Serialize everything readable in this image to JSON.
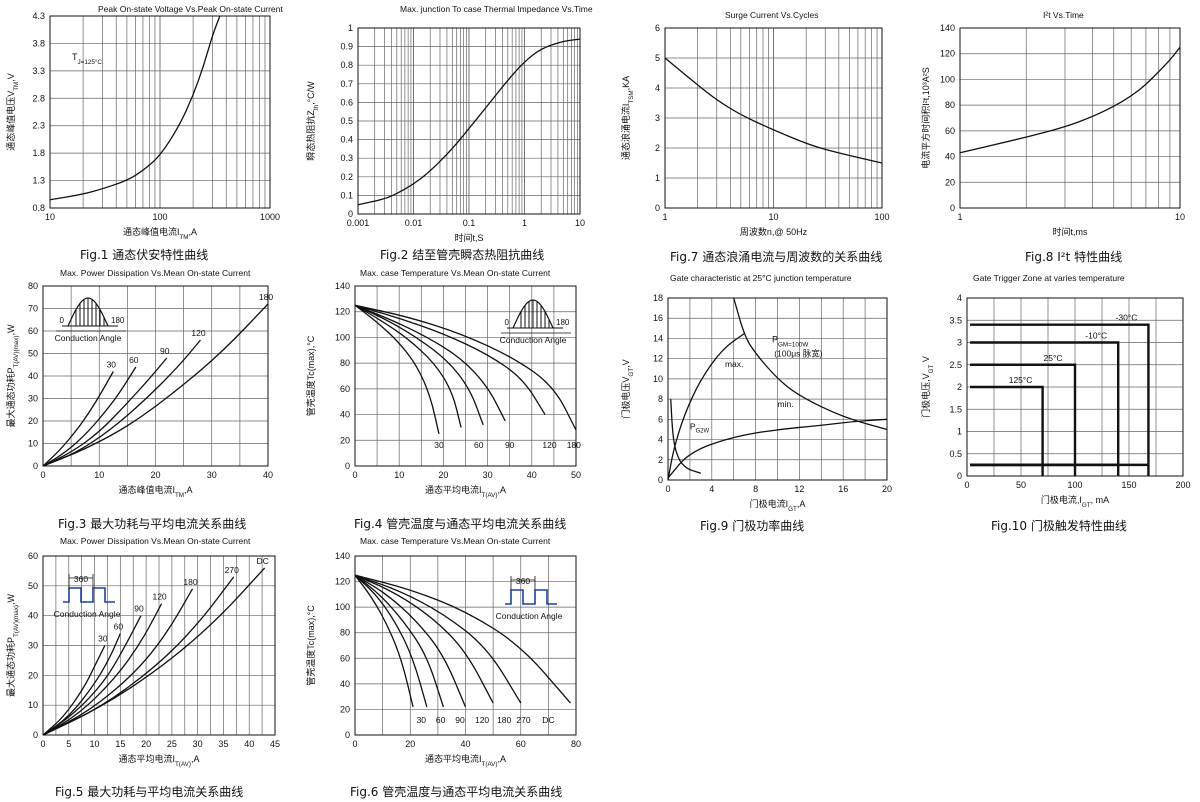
{
  "figure_captions": {
    "fig1": "Fig.1 通态伏安特性曲线",
    "fig2": "Fig.2 结至管壳瞬态热阻抗曲线",
    "fig3": "Fig.3 最大功耗与平均电流关系曲线",
    "fig4": "Fig.4 管壳温度与通态平均电流关系曲线",
    "fig5": "Fig.5 最大功耗与平均电流关系曲线",
    "fig6": "Fig.6 管壳温度与通态平均电流关系曲线",
    "fig7": "Fig.7 通态浪涌电流与周波数的关系曲线",
    "fig8": "Fig.8 I²t 特性曲线",
    "fig9": "Fig.9 门极功率曲线",
    "fig10": "Fig.10 门极触发特性曲线"
  },
  "chart_data": [
    {
      "id": "fig1",
      "type": "line",
      "xscale": "log",
      "title": "Peak On-state Voltage Vs.Peak On-state Current",
      "xlabel": "通态峰值电流I_TM,A",
      "ylabel": "通态峰值电压V_TM,V",
      "xlim": [
        10,
        1000
      ],
      "ylim": [
        0.8,
        4.3
      ],
      "xticks": [
        10,
        100,
        1000
      ],
      "xtick_labels": [
        "10",
        "100",
        "1000"
      ],
      "yticks": [
        0.8,
        1.3,
        1.8,
        2.3,
        2.8,
        3.3,
        3.8,
        4.3
      ],
      "ytick_labels": [
        "0.8",
        "1.3",
        "1.8",
        "2.3",
        "2.8",
        "3.3",
        "3.8",
        "4.3"
      ],
      "annotation": "T_J=125°C",
      "series": [
        {
          "x": [
            10,
            20,
            30,
            50,
            70,
            100,
            150,
            200,
            250,
            300,
            350
          ],
          "y": [
            0.95,
            1.05,
            1.15,
            1.3,
            1.48,
            1.75,
            2.3,
            2.85,
            3.4,
            3.95,
            4.3
          ]
        }
      ]
    },
    {
      "id": "fig2",
      "type": "line",
      "xscale": "log",
      "title": "Max. junction To case Thermal Impedance Vs.Time",
      "xlabel": "时间t,S",
      "ylabel": "瞬态热阻抗Z_th,°C/W",
      "xlim": [
        0.001,
        10
      ],
      "ylim": [
        0,
        1.0
      ],
      "xticks": [
        0.001,
        0.01,
        0.1,
        1,
        10
      ],
      "xtick_labels": [
        "0.001",
        "0.01",
        "0.1",
        "1",
        "10"
      ],
      "yticks": [
        0,
        0.1,
        0.2,
        0.3,
        0.4,
        0.5,
        0.6,
        0.7,
        0.8,
        0.9,
        1
      ],
      "ytick_labels": [
        "0",
        "0.1",
        "0.2",
        "0.3",
        "0.4",
        "0.5",
        "0.6",
        "0.7",
        "0.8",
        "0.9",
        "1"
      ],
      "series": [
        {
          "x": [
            0.001,
            0.003,
            0.005,
            0.01,
            0.02,
            0.05,
            0.1,
            0.2,
            0.5,
            1,
            2,
            5,
            10
          ],
          "y": [
            0.05,
            0.08,
            0.11,
            0.16,
            0.23,
            0.35,
            0.46,
            0.57,
            0.72,
            0.82,
            0.89,
            0.93,
            0.94
          ]
        }
      ]
    },
    {
      "id": "fig3",
      "type": "line",
      "title": "Max. Power Dissipation Vs.Mean On-state Current",
      "xlabel": "通态峰值电流I_TM,A",
      "ylabel": "最大通态功耗P_T(AV)(max),W",
      "xlim": [
        0,
        40
      ],
      "ylim": [
        0,
        80
      ],
      "xticks": [
        0,
        10,
        20,
        30,
        40
      ],
      "xtick_labels": [
        "0",
        "10",
        "20",
        "30",
        "40"
      ],
      "yticks": [
        0,
        10,
        20,
        30,
        40,
        50,
        60,
        70,
        80
      ],
      "ytick_labels": [
        "0",
        "10",
        "20",
        "30",
        "40",
        "50",
        "60",
        "70",
        "80"
      ],
      "inset": {
        "waveform": "half-sine",
        "start_label": "0",
        "end_label": "180",
        "caption": "Conduction Angle"
      },
      "series": [
        {
          "name": "30",
          "x": [
            0,
            3,
            6,
            8,
            10,
            12.5
          ],
          "y": [
            0,
            7,
            16,
            23,
            31,
            42
          ]
        },
        {
          "name": "60",
          "x": [
            0,
            4,
            8,
            12,
            14,
            16.5
          ],
          "y": [
            0,
            6,
            15,
            27,
            34,
            44
          ]
        },
        {
          "name": "90",
          "x": [
            0,
            5,
            10,
            15,
            19,
            22
          ],
          "y": [
            0,
            6,
            15,
            28,
            39,
            48
          ]
        },
        {
          "name": "120",
          "x": [
            0,
            6,
            12,
            18,
            24,
            28
          ],
          "y": [
            0,
            6,
            16,
            29,
            44,
            56
          ]
        },
        {
          "name": "180",
          "x": [
            0,
            8,
            16,
            24,
            32,
            40
          ],
          "y": [
            0,
            8,
            19,
            34,
            51,
            72
          ]
        }
      ]
    },
    {
      "id": "fig4",
      "type": "line",
      "title": "Max. case Temperature Vs.Mean On-state Current",
      "xlabel": "通态平均电流I_T(AV),A",
      "ylabel": "管壳温度Tc(max),°C",
      "xlim": [
        0,
        50
      ],
      "ylim": [
        0,
        140
      ],
      "xticks": [
        0,
        10,
        20,
        30,
        40,
        50
      ],
      "xtick_labels": [
        "0",
        "10",
        "20",
        "30",
        "40",
        "50"
      ],
      "yticks": [
        0,
        20,
        40,
        60,
        80,
        100,
        120,
        140
      ],
      "ytick_labels": [
        "0",
        "20",
        "40",
        "60",
        "80",
        "100",
        "120",
        "140"
      ],
      "inset": {
        "waveform": "half-sine",
        "start_label": "0",
        "end_label": "180",
        "caption": "Conduction Angle"
      },
      "series": [
        {
          "name": "30",
          "x": [
            0,
            5,
            10,
            14,
            17,
            19
          ],
          "y": [
            125,
            112,
            96,
            78,
            55,
            25
          ]
        },
        {
          "name": "60",
          "x": [
            0,
            6,
            12,
            18,
            22,
            24
          ],
          "y": [
            125,
            113,
            99,
            80,
            58,
            30
          ]
        },
        {
          "name": "90",
          "x": [
            0,
            7,
            14,
            21,
            26,
            29
          ],
          "y": [
            125,
            114,
            100,
            82,
            60,
            32
          ]
        },
        {
          "name": "120",
          "x": [
            0,
            8,
            16,
            24,
            30,
            34
          ],
          "y": [
            125,
            114,
            101,
            84,
            62,
            35
          ]
        },
        {
          "name": "180",
          "x": [
            0,
            10,
            20,
            30,
            38,
            43
          ],
          "y": [
            125,
            115,
            103,
            87,
            68,
            40
          ]
        },
        {
          "name": "",
          "x": [
            0,
            12,
            24,
            36,
            45,
            50
          ],
          "y": [
            125,
            116,
            103,
            84,
            62,
            28
          ]
        }
      ],
      "bottom_labels": [
        "30",
        "60",
        "90",
        "120",
        "180"
      ]
    },
    {
      "id": "fig5",
      "type": "line",
      "title": "Max. Power Dissipation Vs.Mean On-state Current",
      "xlabel": "通态平均电流I_T(AV),A",
      "ylabel": "最大通态功耗P_T(AV)(max),W",
      "xlim": [
        0,
        45
      ],
      "ylim": [
        0,
        60
      ],
      "xticks": [
        0,
        5,
        10,
        15,
        20,
        25,
        30,
        35,
        40,
        45
      ],
      "xtick_labels": [
        "0",
        "5",
        "10",
        "15",
        "20",
        "25",
        "30",
        "35",
        "40",
        "45"
      ],
      "yticks": [
        0,
        10,
        20,
        30,
        40,
        50,
        60
      ],
      "ytick_labels": [
        "0",
        "10",
        "20",
        "30",
        "40",
        "50",
        "60"
      ],
      "inset": {
        "waveform": "square",
        "angle_label": "360",
        "caption": "Conduction Angle"
      },
      "series": [
        {
          "name": "30",
          "x": [
            0,
            4,
            8,
            10,
            12
          ],
          "y": [
            0,
            6,
            16,
            23,
            30
          ]
        },
        {
          "name": "60",
          "x": [
            0,
            5,
            10,
            13,
            15
          ],
          "y": [
            0,
            6,
            17,
            26,
            34
          ]
        },
        {
          "name": "90",
          "x": [
            0,
            6,
            12,
            16,
            19
          ],
          "y": [
            0,
            7,
            18,
            30,
            40
          ]
        },
        {
          "name": "120",
          "x": [
            0,
            7,
            14,
            19,
            23
          ],
          "y": [
            0,
            7,
            19,
            31,
            44
          ]
        },
        {
          "name": "180",
          "x": [
            0,
            9,
            18,
            24,
            29
          ],
          "y": [
            0,
            8,
            21,
            34,
            49
          ]
        },
        {
          "name": "270",
          "x": [
            0,
            11,
            22,
            30,
            37
          ],
          "y": [
            0,
            9,
            23,
            37,
            53
          ]
        },
        {
          "name": "DC",
          "x": [
            0,
            12,
            24,
            34,
            43
          ],
          "y": [
            0,
            10,
            24,
            39,
            56
          ]
        }
      ]
    },
    {
      "id": "fig6",
      "type": "line",
      "title": "Max. case Temperature Vs.Mean On-state Current",
      "xlabel": "通态平均电流I_T(AV),A",
      "ylabel": "管壳温度Tc(max),°C",
      "xlim": [
        0,
        80
      ],
      "ylim": [
        0,
        140
      ],
      "xticks": [
        0,
        20,
        40,
        60,
        80
      ],
      "xtick_labels": [
        "0",
        "20",
        "40",
        "60",
        "80"
      ],
      "yticks": [
        0,
        20,
        40,
        60,
        80,
        100,
        120,
        140
      ],
      "ytick_labels": [
        "0",
        "20",
        "40",
        "60",
        "80",
        "100",
        "120",
        "140"
      ],
      "inset": {
        "waveform": "square",
        "angle_label": "360",
        "caption": "Conduction Angle"
      },
      "series": [
        {
          "name": "30",
          "x": [
            0,
            6,
            12,
            17,
            21
          ],
          "y": [
            125,
            108,
            85,
            58,
            22
          ]
        },
        {
          "name": "60",
          "x": [
            0,
            8,
            15,
            21,
            26
          ],
          "y": [
            125,
            109,
            87,
            60,
            22
          ]
        },
        {
          "name": "90",
          "x": [
            0,
            9,
            18,
            26,
            32
          ],
          "y": [
            125,
            110,
            88,
            62,
            22
          ]
        },
        {
          "name": "120",
          "x": [
            0,
            11,
            22,
            32,
            40
          ],
          "y": [
            125,
            111,
            90,
            63,
            22
          ]
        },
        {
          "name": "180",
          "x": [
            0,
            14,
            28,
            40,
            50
          ],
          "y": [
            125,
            112,
            92,
            66,
            25
          ]
        },
        {
          "name": "270",
          "x": [
            0,
            16,
            32,
            48,
            60
          ],
          "y": [
            125,
            113,
            95,
            68,
            25
          ]
        },
        {
          "name": "DC",
          "x": [
            0,
            20,
            40,
            60,
            78
          ],
          "y": [
            125,
            114,
            97,
            70,
            25
          ]
        }
      ],
      "bottom_labels": [
        "30",
        "60",
        "90",
        "120",
        "180",
        "270",
        "DC"
      ]
    },
    {
      "id": "fig7",
      "type": "line",
      "xscale": "log",
      "title": "Surge Current Vs.Cycles",
      "xlabel": "周波数n,@ 50Hz",
      "ylabel": "通态浪涌电流I_TSM,KA",
      "xlim": [
        1,
        100
      ],
      "ylim": [
        0,
        6
      ],
      "xticks": [
        1,
        10,
        100
      ],
      "xtick_labels": [
        "1",
        "10",
        "100"
      ],
      "yticks": [
        0,
        1,
        2,
        3,
        4,
        5,
        6
      ],
      "ytick_labels": [
        "0",
        "1",
        "2",
        "3",
        "4",
        "5",
        "6"
      ],
      "series": [
        {
          "x": [
            1,
            2,
            3,
            5,
            10,
            20,
            30,
            50,
            100
          ],
          "y": [
            5.0,
            4.1,
            3.6,
            3.1,
            2.6,
            2.15,
            1.95,
            1.75,
            1.5
          ]
        }
      ]
    },
    {
      "id": "fig8",
      "type": "line",
      "xscale": "log",
      "title": "I²t Vs.Time",
      "xlabel": "时间t,ms",
      "ylabel": "电流平方时间积I²t,10³A²S",
      "xlim": [
        1,
        10
      ],
      "ylim": [
        0,
        140
      ],
      "xticks": [
        1,
        10
      ],
      "xtick_labels": [
        "1",
        "10"
      ],
      "yticks": [
        0,
        20,
        40,
        60,
        80,
        100,
        120,
        140
      ],
      "ytick_labels": [
        "0",
        "20",
        "40",
        "60",
        "80",
        "100",
        "120",
        "140"
      ],
      "series": [
        {
          "x": [
            1,
            2,
            3,
            4,
            5,
            6,
            7,
            8,
            9,
            10
          ],
          "y": [
            43,
            55,
            63,
            71,
            79,
            87,
            96,
            106,
            115,
            125
          ]
        }
      ]
    },
    {
      "id": "fig9",
      "type": "line",
      "title": "Gate characteristic at 25°C junction temperature",
      "xlabel": "门极电流I_GT,A",
      "ylabel": "门极电压V_GT,V",
      "xlim": [
        0,
        20
      ],
      "ylim": [
        0,
        18
      ],
      "xticks": [
        0,
        4,
        8,
        12,
        16,
        20
      ],
      "xtick_labels": [
        "0",
        "4",
        "8",
        "12",
        "16",
        "20"
      ],
      "yticks": [
        0,
        2,
        4,
        6,
        8,
        10,
        12,
        14,
        16,
        18
      ],
      "ytick_labels": [
        "0",
        "2",
        "4",
        "6",
        "8",
        "10",
        "12",
        "14",
        "16",
        "18"
      ],
      "annotations": [
        "max.",
        "min.",
        "P_GM=100W",
        "(100μs 脉宽)",
        "P_G2W"
      ],
      "series": [
        {
          "name": "max.",
          "x": [
            0,
            0.5,
            1.5,
            3,
            5,
            7
          ],
          "y": [
            0,
            3,
            6.5,
            10,
            13,
            14.5
          ]
        },
        {
          "name": "min.",
          "x": [
            0,
            2,
            6,
            10,
            14,
            17,
            20
          ],
          "y": [
            0.2,
            2.8,
            4.3,
            5.0,
            5.4,
            5.8,
            6.0
          ]
        },
        {
          "name": "P_GM",
          "x": [
            6,
            7,
            8,
            10,
            12,
            16,
            20
          ],
          "y": [
            18,
            14.2,
            12.5,
            10,
            8.3,
            6.2,
            5.0
          ]
        },
        {
          "name": "P_G",
          "x": [
            0.25,
            0.4,
            0.6,
            1.0,
            1.5,
            2.0,
            3.0
          ],
          "y": [
            8,
            5,
            3.3,
            2,
            1.33,
            1.0,
            0.67
          ]
        }
      ]
    },
    {
      "id": "fig10",
      "type": "line",
      "title": "Gate Trigger Zone at varies temperature",
      "xlabel": "门极电流,I_GT, mA",
      "ylabel": "门极电压,V_GT V",
      "xlim": [
        0,
        200
      ],
      "ylim": [
        0,
        4
      ],
      "xticks": [
        0,
        50,
        100,
        150,
        200
      ],
      "xtick_labels": [
        "0",
        "50",
        "100",
        "150",
        "200"
      ],
      "yticks": [
        0,
        0.5,
        1,
        1.5,
        2,
        2.5,
        3,
        3.5,
        4
      ],
      "ytick_labels": [
        "0",
        "0.5",
        "1",
        "1.5",
        "2",
        "2.5",
        "3",
        "3.5",
        "4"
      ],
      "zones": [
        {
          "label": "125°C",
          "i_max": 70,
          "v_max": 2.0
        },
        {
          "label": "25°C",
          "i_max": 100,
          "v_max": 2.5
        },
        {
          "label": "-10°C",
          "i_max": 140,
          "v_max": 3.0
        },
        {
          "label": "-30°C",
          "i_max": 168,
          "v_max": 3.4
        }
      ],
      "v_min": 0.25
    }
  ]
}
